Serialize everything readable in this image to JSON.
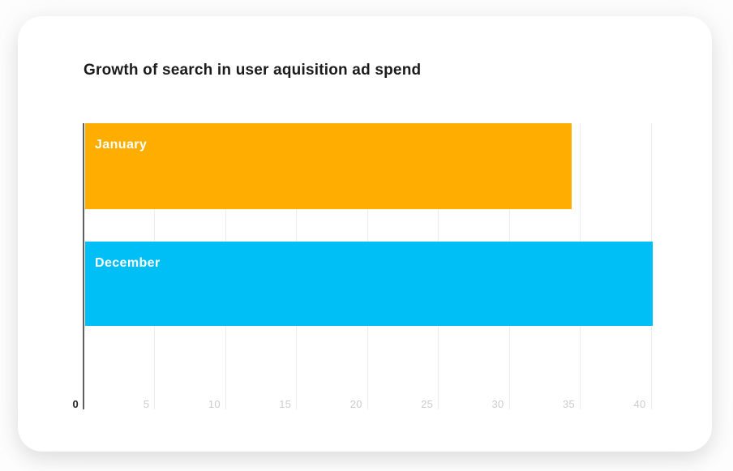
{
  "card": {
    "background": "#ffffff"
  },
  "chart_data": {
    "type": "bar",
    "orientation": "horizontal",
    "title": "Growth of search in user aquisition ad spend",
    "categories": [
      "January",
      "December"
    ],
    "values": [
      34.3,
      40
    ],
    "series_colors": [
      "#FFAE00",
      "#00BFF7"
    ],
    "bar_label_color": "#ffffff",
    "xlabel": "",
    "ylabel": "",
    "xlim": [
      0,
      40.2
    ],
    "xticks": [
      0,
      5,
      10,
      15,
      20,
      25,
      30,
      35,
      40
    ],
    "grid": "vertical",
    "gridline_color": "#ececec",
    "axis_line_color": "#5f5f5f",
    "tick_color": "#cccccc",
    "tick_zero_color": "#1f1f1f",
    "legend": "none"
  }
}
